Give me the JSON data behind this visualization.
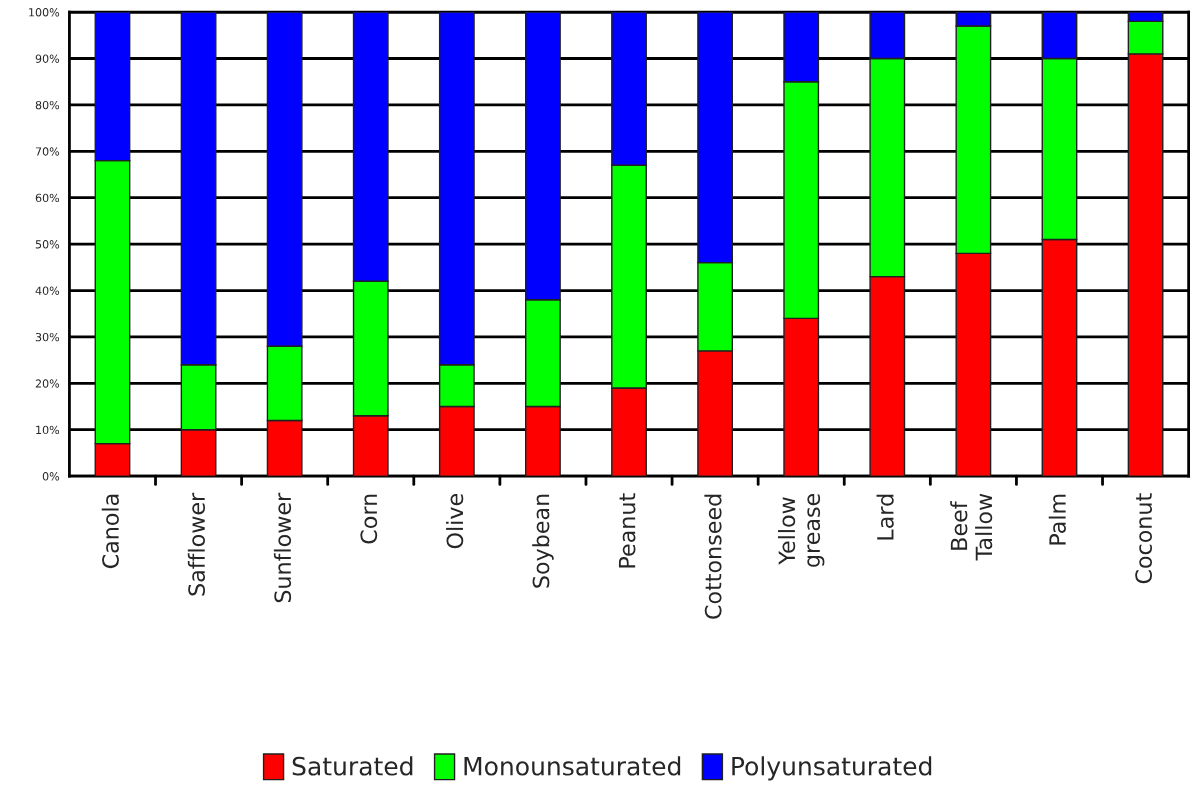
{
  "chart_data": {
    "type": "bar",
    "stacked": true,
    "categories": [
      "Canola",
      "Safflower",
      "Sunflower",
      "Corn",
      "Olive",
      "Soybean",
      "Peanut",
      "Cottonseed",
      "Yellow\ngrease",
      "Lard",
      "Beef\nTallow",
      "Palm",
      "Coconut"
    ],
    "series": [
      {
        "name": "Saturated",
        "color": "#ff0000",
        "values": [
          7,
          10,
          12,
          13,
          15,
          15,
          19,
          27,
          34,
          43,
          48,
          51,
          91
        ]
      },
      {
        "name": "Monounsaturated",
        "color": "#00ff00",
        "values": [
          61,
          14,
          16,
          29,
          9,
          23,
          48,
          19,
          51,
          47,
          49,
          39,
          7
        ]
      },
      {
        "name": "Polyunsaturated",
        "color": "#0000ff",
        "values": [
          32,
          76,
          72,
          58,
          76,
          62,
          33,
          54,
          15,
          10,
          3,
          10,
          2
        ]
      }
    ],
    "ylim": [
      0,
      100
    ],
    "yticks": [
      {
        "value": 0,
        "label": "0%"
      },
      {
        "value": 10,
        "label": "10%"
      },
      {
        "value": 20,
        "label": "20%"
      },
      {
        "value": 30,
        "label": "30%"
      },
      {
        "value": 40,
        "label": "40%"
      },
      {
        "value": 50,
        "label": "50%"
      },
      {
        "value": 60,
        "label": "60%"
      },
      {
        "value": 70,
        "label": "70%"
      },
      {
        "value": 80,
        "label": "80%"
      },
      {
        "value": 90,
        "label": "90%"
      },
      {
        "value": 100,
        "label": "100%"
      }
    ],
    "grid": "y",
    "legend": "bottom"
  }
}
